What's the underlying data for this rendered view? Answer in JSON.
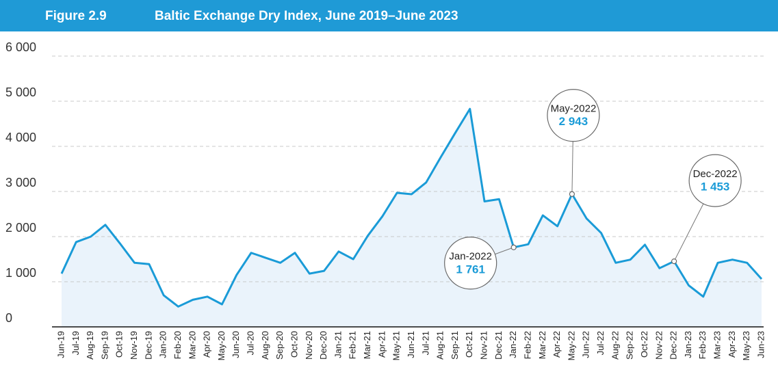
{
  "chart_data": {
    "type": "line",
    "figure_label": "Figure 2.9",
    "title": "Baltic Exchange Dry Index, June 2019–June 2023",
    "categories": [
      "Jun-19",
      "Jul-19",
      "Aug-19",
      "Sep-19",
      "Oct-19",
      "Nov-19",
      "Dec-19",
      "Jan-20",
      "Feb-20",
      "Mar-20",
      "Apr-20",
      "May-20",
      "Jun-20",
      "Jul-20",
      "Aug-20",
      "Sep-20",
      "Oct-20",
      "Nov-20",
      "Dec-20",
      "Jan-21",
      "Feb-21",
      "Mar-21",
      "Apr-21",
      "May-21",
      "Jun-21",
      "Jul-21",
      "Aug-21",
      "Sep-21",
      "Oct-21",
      "Nov-21",
      "Dec-21",
      "Jan-22",
      "Feb-22",
      "Mar-22",
      "Apr-22",
      "May-22",
      "Jun-22",
      "Jul-22",
      "Aug-22",
      "Sep-22",
      "Oct-22",
      "Nov-22",
      "Dec-22",
      "Jan-23",
      "Feb-23",
      "Mar-23",
      "Apr-23",
      "May-23",
      "Jun-23"
    ],
    "values": [
      1180,
      1880,
      2000,
      2260,
      1850,
      1420,
      1390,
      700,
      450,
      600,
      670,
      500,
      1150,
      1640,
      1530,
      1420,
      1640,
      1180,
      1240,
      1670,
      1500,
      2020,
      2450,
      2970,
      2940,
      3200,
      3760,
      4300,
      4830,
      2780,
      2830,
      1761,
      1830,
      2470,
      2230,
      2943,
      2400,
      2080,
      1420,
      1490,
      1820,
      1300,
      1453,
      920,
      670,
      1420,
      1490,
      1420,
      1060
    ],
    "color": "#1a9bd7",
    "area_color": "#eaf3fb",
    "ylim": [
      0,
      6000
    ],
    "yticks": [
      0,
      {
        "value": 1000,
        "label": "1 000"
      },
      {
        "value": 2000,
        "label": "2 000"
      },
      {
        "value": 3000,
        "label": "3 000"
      },
      {
        "value": 4000,
        "label": "4 000"
      },
      {
        "value": 5000,
        "label": "5 000"
      },
      {
        "value": 6000,
        "label": "6 000"
      }
    ],
    "grid": true,
    "annotations": [
      {
        "label": "Jan-2022",
        "value": 1761,
        "value_label": "1 761"
      },
      {
        "label": "May-2022",
        "value": 2943,
        "value_label": "2 943"
      },
      {
        "label": "Dec-2022",
        "value": 1453,
        "value_label": "1 453"
      }
    ]
  }
}
